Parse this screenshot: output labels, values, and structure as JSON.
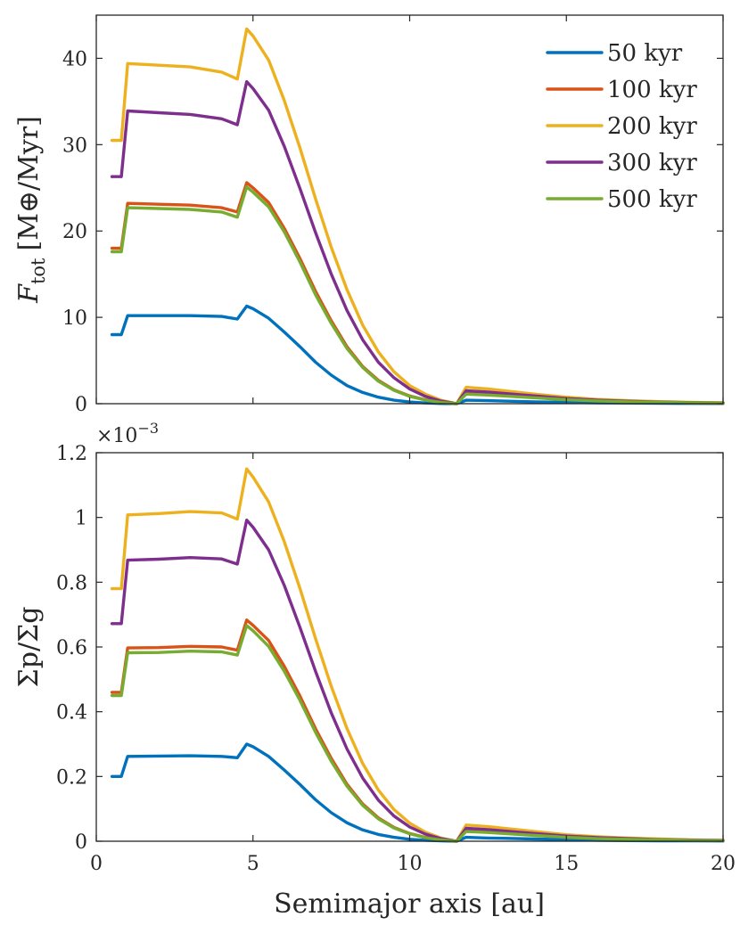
{
  "chart_data": [
    {
      "type": "line",
      "panel": "top",
      "ylabel_symbol": "F",
      "ylabel_subscript": "tot",
      "ylabel_units": "[M⊕/Myr]",
      "xlabel": "",
      "xlim": [
        0,
        20
      ],
      "ylim": [
        0,
        45
      ],
      "yticks": [
        0,
        10,
        20,
        30,
        40
      ],
      "xticks": [
        0,
        5,
        10,
        15,
        20
      ],
      "ytick_labels": [
        "0",
        "10",
        "20",
        "30",
        "40"
      ],
      "legend_position": "top-right",
      "series": [
        {
          "name": "50 kyr",
          "color": "#0072BD",
          "x": [
            0.5,
            0.8,
            1.0,
            2.0,
            3.0,
            4.0,
            4.5,
            4.8,
            5.0,
            5.5,
            6.0,
            6.5,
            7.0,
            7.5,
            8.0,
            8.5,
            9.0,
            9.5,
            10.0,
            10.5,
            11.0,
            11.5,
            11.8,
            12.5,
            13.0,
            14.0,
            15.0,
            16.0,
            17.0,
            18.0,
            19.0,
            20.0
          ],
          "y": [
            8.0,
            8.0,
            10.2,
            10.2,
            10.2,
            10.1,
            9.8,
            11.3,
            11.0,
            9.9,
            8.3,
            6.6,
            4.8,
            3.3,
            2.1,
            1.3,
            0.75,
            0.4,
            0.2,
            0.08,
            0.02,
            0.0,
            0.4,
            0.35,
            0.3,
            0.22,
            0.15,
            0.1,
            0.07,
            0.05,
            0.03,
            0.02
          ]
        },
        {
          "name": "100 kyr",
          "color": "#D95319",
          "x": [
            0.5,
            0.8,
            1.0,
            2.0,
            3.0,
            4.0,
            4.5,
            4.8,
            5.0,
            5.5,
            6.0,
            6.5,
            7.0,
            7.5,
            8.0,
            8.5,
            9.0,
            9.5,
            10.0,
            10.5,
            11.0,
            11.5,
            11.8,
            12.5,
            13.0,
            14.0,
            15.0,
            16.0,
            17.0,
            18.0,
            19.0,
            20.0
          ],
          "y": [
            18.0,
            18.0,
            23.2,
            23.1,
            23.0,
            22.7,
            22.2,
            25.6,
            25.0,
            23.3,
            20.3,
            16.8,
            13.0,
            9.6,
            6.6,
            4.3,
            2.7,
            1.6,
            0.9,
            0.45,
            0.15,
            0.0,
            1.3,
            1.15,
            1.0,
            0.75,
            0.5,
            0.35,
            0.24,
            0.16,
            0.1,
            0.06
          ]
        },
        {
          "name": "200 kyr",
          "color": "#EDB120",
          "x": [
            0.5,
            0.8,
            1.0,
            2.0,
            3.0,
            4.0,
            4.5,
            4.8,
            5.0,
            5.5,
            6.0,
            6.5,
            7.0,
            7.5,
            8.0,
            8.5,
            9.0,
            9.5,
            10.0,
            10.5,
            11.0,
            11.5,
            11.8,
            12.5,
            13.0,
            14.0,
            15.0,
            16.0,
            17.0,
            18.0,
            19.0,
            20.0
          ],
          "y": [
            30.5,
            30.5,
            39.4,
            39.2,
            39.0,
            38.4,
            37.6,
            43.4,
            42.6,
            39.8,
            35.1,
            29.6,
            23.7,
            18.1,
            13.2,
            9.1,
            6.0,
            3.7,
            2.1,
            1.1,
            0.4,
            0.0,
            1.9,
            1.7,
            1.5,
            1.1,
            0.75,
            0.5,
            0.35,
            0.24,
            0.15,
            0.1
          ]
        },
        {
          "name": "300 kyr",
          "color": "#7E2F8E",
          "x": [
            0.5,
            0.8,
            1.0,
            2.0,
            3.0,
            4.0,
            4.5,
            4.8,
            5.0,
            5.5,
            6.0,
            6.5,
            7.0,
            7.5,
            8.0,
            8.5,
            9.0,
            9.5,
            10.0,
            10.5,
            11.0,
            11.5,
            11.8,
            12.5,
            13.0,
            14.0,
            15.0,
            16.0,
            17.0,
            18.0,
            19.0,
            20.0
          ],
          "y": [
            26.3,
            26.3,
            33.9,
            33.7,
            33.5,
            33.0,
            32.3,
            37.3,
            36.5,
            34.0,
            29.8,
            24.9,
            19.8,
            15.0,
            10.8,
            7.4,
            4.8,
            3.0,
            1.7,
            0.85,
            0.3,
            0.0,
            1.5,
            1.35,
            1.2,
            0.9,
            0.6,
            0.4,
            0.28,
            0.19,
            0.12,
            0.08
          ]
        },
        {
          "name": "500 kyr",
          "color": "#77AC30",
          "x": [
            0.5,
            0.8,
            1.0,
            2.0,
            3.0,
            4.0,
            4.5,
            4.8,
            5.0,
            5.5,
            6.0,
            6.5,
            7.0,
            7.5,
            8.0,
            8.5,
            9.0,
            9.5,
            10.0,
            10.5,
            11.0,
            11.5,
            11.8,
            12.5,
            13.0,
            14.0,
            15.0,
            16.0,
            17.0,
            18.0,
            19.0,
            20.0
          ],
          "y": [
            17.6,
            17.6,
            22.7,
            22.6,
            22.5,
            22.2,
            21.6,
            25.1,
            24.5,
            22.8,
            19.9,
            16.4,
            12.6,
            9.3,
            6.4,
            4.2,
            2.6,
            1.55,
            0.85,
            0.42,
            0.14,
            0.0,
            1.1,
            1.0,
            0.9,
            0.68,
            0.46,
            0.32,
            0.22,
            0.15,
            0.1,
            0.06
          ]
        }
      ]
    },
    {
      "type": "line",
      "panel": "bottom",
      "ylabel": "Σp/Σg",
      "xlabel": "Semimajor axis [au]",
      "exponent_label": "×10",
      "exponent_power": "−3",
      "xlim": [
        0,
        20
      ],
      "ylim": [
        0,
        1.2
      ],
      "yticks": [
        0,
        0.2,
        0.4,
        0.6,
        0.8,
        1.0,
        1.2
      ],
      "ytick_labels": [
        "0",
        "0.2",
        "0.4",
        "0.6",
        "0.8",
        "1",
        "1.2"
      ],
      "xticks": [
        0,
        5,
        10,
        15,
        20
      ],
      "xtick_labels": [
        "0",
        "5",
        "10",
        "15",
        "20"
      ],
      "series": [
        {
          "name": "50 kyr",
          "color": "#0072BD",
          "x": [
            0.5,
            0.8,
            1.0,
            2.0,
            3.0,
            4.0,
            4.5,
            4.8,
            5.0,
            5.5,
            6.0,
            6.5,
            7.0,
            7.5,
            8.0,
            8.5,
            9.0,
            9.5,
            10.0,
            10.5,
            11.0,
            11.5,
            11.8,
            12.5,
            13.0,
            14.0,
            15.0,
            16.0,
            17.0,
            18.0,
            19.0,
            20.0
          ],
          "y": [
            0.2,
            0.2,
            0.262,
            0.263,
            0.264,
            0.262,
            0.258,
            0.3,
            0.292,
            0.262,
            0.22,
            0.175,
            0.128,
            0.088,
            0.057,
            0.035,
            0.021,
            0.012,
            0.006,
            0.003,
            0.001,
            0.0,
            0.012,
            0.01,
            0.009,
            0.007,
            0.005,
            0.003,
            0.002,
            0.0015,
            0.001,
            0.0007
          ]
        },
        {
          "name": "100 kyr",
          "color": "#D95319",
          "x": [
            0.5,
            0.8,
            1.0,
            2.0,
            3.0,
            4.0,
            4.5,
            4.8,
            5.0,
            5.5,
            6.0,
            6.5,
            7.0,
            7.5,
            8.0,
            8.5,
            9.0,
            9.5,
            10.0,
            10.5,
            11.0,
            11.5,
            11.8,
            12.5,
            13.0,
            14.0,
            15.0,
            16.0,
            17.0,
            18.0,
            19.0,
            20.0
          ],
          "y": [
            0.46,
            0.46,
            0.597,
            0.598,
            0.602,
            0.6,
            0.59,
            0.683,
            0.667,
            0.62,
            0.54,
            0.448,
            0.347,
            0.256,
            0.176,
            0.115,
            0.072,
            0.043,
            0.024,
            0.012,
            0.004,
            0.0,
            0.035,
            0.031,
            0.027,
            0.02,
            0.014,
            0.01,
            0.007,
            0.0045,
            0.003,
            0.002
          ]
        },
        {
          "name": "200 kyr",
          "color": "#EDB120",
          "x": [
            0.5,
            0.8,
            1.0,
            2.0,
            3.0,
            4.0,
            4.5,
            4.8,
            5.0,
            5.5,
            6.0,
            6.5,
            7.0,
            7.5,
            8.0,
            8.5,
            9.0,
            9.5,
            10.0,
            10.5,
            11.0,
            11.5,
            11.8,
            12.5,
            13.0,
            14.0,
            15.0,
            16.0,
            17.0,
            18.0,
            19.0,
            20.0
          ],
          "y": [
            0.78,
            0.78,
            1.008,
            1.012,
            1.018,
            1.014,
            0.995,
            1.15,
            1.125,
            1.048,
            0.925,
            0.78,
            0.625,
            0.478,
            0.348,
            0.24,
            0.158,
            0.098,
            0.056,
            0.028,
            0.01,
            0.0,
            0.05,
            0.045,
            0.04,
            0.03,
            0.02,
            0.014,
            0.01,
            0.007,
            0.004,
            0.003
          ]
        },
        {
          "name": "300 kyr",
          "color": "#7E2F8E",
          "x": [
            0.5,
            0.8,
            1.0,
            2.0,
            3.0,
            4.0,
            4.5,
            4.8,
            5.0,
            5.5,
            6.0,
            6.5,
            7.0,
            7.5,
            8.0,
            8.5,
            9.0,
            9.5,
            10.0,
            10.5,
            11.0,
            11.5,
            11.8,
            12.5,
            13.0,
            14.0,
            15.0,
            16.0,
            17.0,
            18.0,
            19.0,
            20.0
          ],
          "y": [
            0.672,
            0.672,
            0.868,
            0.871,
            0.876,
            0.872,
            0.856,
            0.992,
            0.97,
            0.9,
            0.79,
            0.66,
            0.524,
            0.396,
            0.285,
            0.195,
            0.127,
            0.078,
            0.044,
            0.022,
            0.008,
            0.0,
            0.04,
            0.036,
            0.032,
            0.024,
            0.016,
            0.011,
            0.008,
            0.005,
            0.0035,
            0.0025
          ]
        },
        {
          "name": "500 kyr",
          "color": "#77AC30",
          "x": [
            0.5,
            0.8,
            1.0,
            2.0,
            3.0,
            4.0,
            4.5,
            4.8,
            5.0,
            5.5,
            6.0,
            6.5,
            7.0,
            7.5,
            8.0,
            8.5,
            9.0,
            9.5,
            10.0,
            10.5,
            11.0,
            11.5,
            11.8,
            12.5,
            13.0,
            14.0,
            15.0,
            16.0,
            17.0,
            18.0,
            19.0,
            20.0
          ],
          "y": [
            0.45,
            0.45,
            0.582,
            0.583,
            0.587,
            0.585,
            0.575,
            0.666,
            0.65,
            0.602,
            0.525,
            0.435,
            0.336,
            0.247,
            0.17,
            0.111,
            0.069,
            0.041,
            0.023,
            0.011,
            0.004,
            0.0,
            0.03,
            0.027,
            0.024,
            0.018,
            0.012,
            0.008,
            0.006,
            0.004,
            0.0025,
            0.0018
          ]
        }
      ]
    }
  ]
}
